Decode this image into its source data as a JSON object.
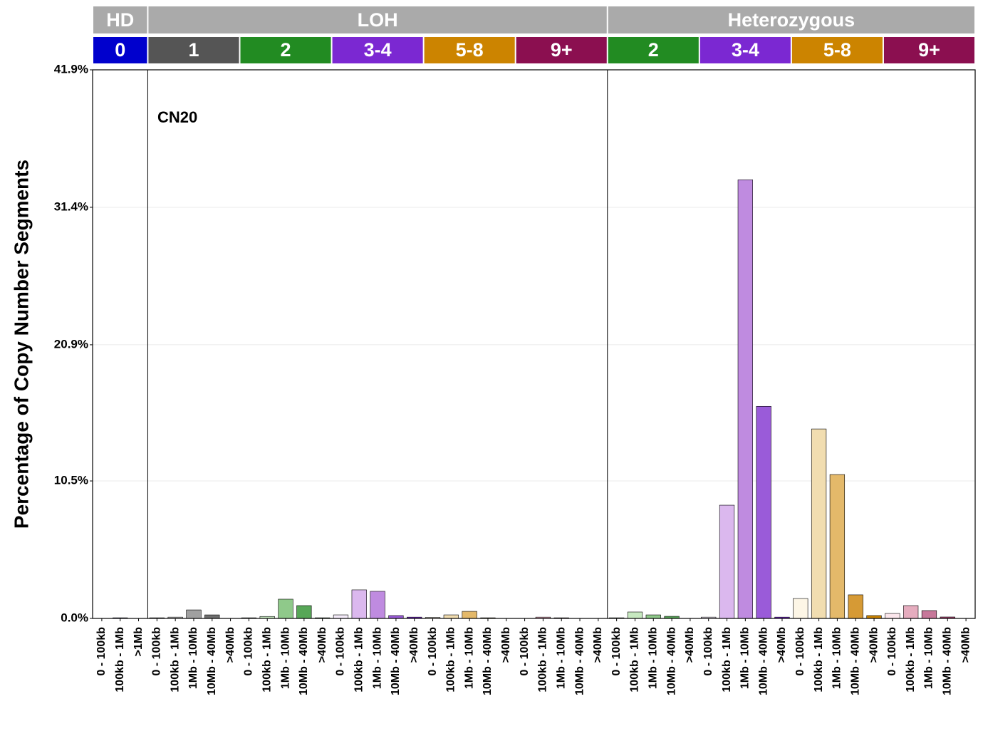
{
  "chart_data": {
    "type": "bar",
    "annotation": "CN20",
    "y_label": "Percentage of Copy Number Segments",
    "ylim": [
      0,
      41.9
    ],
    "yticks": [
      {
        "value": 0,
        "label": "0.0%"
      },
      {
        "value": 10.5,
        "label": "10.5%"
      },
      {
        "value": 20.9,
        "label": "20.9%"
      },
      {
        "value": 31.4,
        "label": "31.4%"
      },
      {
        "value": 41.9,
        "label": "41.9%"
      }
    ],
    "grid": true,
    "panels": [
      {
        "name": "HD",
        "color": "#aaaaaa",
        "groups": [
          {
            "name": "0",
            "color": "#0000cd",
            "categories": [
              "0 - 100kb",
              "100kb - 1Mb",
              ">1Mb"
            ],
            "values": [
              0,
              0.05,
              0
            ],
            "colors": [
              "#ccccff",
              "#6666ee",
              "#0000cd"
            ]
          }
        ]
      },
      {
        "name": "LOH",
        "color": "#aaaaaa",
        "groups": [
          {
            "name": "1",
            "color": "#555555",
            "categories": [
              "0 - 100kb",
              "100kb - 1Mb",
              "1Mb - 10Mb",
              "10Mb - 40Mb",
              ">40Mb"
            ],
            "values": [
              0.05,
              0.1,
              0.65,
              0.27,
              0
            ],
            "colors": [
              "#f0f0f0",
              "#d0d0d0",
              "#a0a0a0",
              "#707070",
              "#505050"
            ]
          },
          {
            "name": "2",
            "color": "#228b22",
            "categories": [
              "0 - 100kb",
              "100kb - 1Mb",
              "1Mb - 10Mb",
              "10Mb - 40Mb",
              ">40Mb"
            ],
            "values": [
              0.05,
              0.15,
              1.47,
              0.98,
              0.05
            ],
            "colors": [
              "#e5f5e0",
              "#c7e9c0",
              "#8fc98a",
              "#57a757",
              "#228b22"
            ]
          },
          {
            "name": "3-4",
            "color": "#7b28d2",
            "categories": [
              "0 - 100kb",
              "100kb - 1Mb",
              "1Mb - 10Mb",
              "10Mb - 40Mb",
              ">40Mb"
            ],
            "values": [
              0.27,
              2.18,
              2.07,
              0.22,
              0.1
            ],
            "colors": [
              "#f5ecfa",
              "#dbb8ee",
              "#bf8be0",
              "#9a5bd9",
              "#7b28d2"
            ]
          },
          {
            "name": "5-8",
            "color": "#cc8400",
            "categories": [
              "0 - 100kb",
              "100kb - 1Mb",
              "1Mb - 10Mb",
              "10Mb - 40Mb",
              ">40Mb"
            ],
            "values": [
              0.08,
              0.27,
              0.54,
              0.05,
              0
            ],
            "colors": [
              "#fdf6e6",
              "#f1ddb0",
              "#e4b96a",
              "#d69a35",
              "#cc8400"
            ]
          },
          {
            "name": "9+",
            "color": "#8b0f50",
            "categories": [
              "0 - 100kb",
              "100kb - 1Mb",
              "1Mb - 10Mb",
              "10Mb - 40Mb",
              ">40Mb"
            ],
            "values": [
              0,
              0.1,
              0.05,
              0,
              0
            ],
            "colors": [
              "#fbe6ec",
              "#e5acbe",
              "#c7789a",
              "#a84370",
              "#8b0f50"
            ]
          }
        ]
      },
      {
        "name": "Heterozygous",
        "color": "#aaaaaa",
        "groups": [
          {
            "name": "2",
            "color": "#228b22",
            "categories": [
              "0 - 100kb",
              "100kb - 1Mb",
              "1Mb - 10Mb",
              "10Mb - 40Mb",
              ">40Mb"
            ],
            "values": [
              0.05,
              0.49,
              0.27,
              0.16,
              0
            ],
            "colors": [
              "#e5f5e0",
              "#c7e9c0",
              "#8fc98a",
              "#57a757",
              "#228b22"
            ]
          },
          {
            "name": "3-4",
            "color": "#7b28d2",
            "categories": [
              "0 - 100kb",
              "100kb - 1Mb",
              "1Mb - 10Mb",
              "10Mb - 40Mb",
              ">40Mb"
            ],
            "values": [
              0.1,
              8.65,
              33.5,
              16.2,
              0.1
            ],
            "colors": [
              "#f5ecfa",
              "#dbb8ee",
              "#bf8be0",
              "#9a5bd9",
              "#7b28d2"
            ]
          },
          {
            "name": "5-8",
            "color": "#cc8400",
            "categories": [
              "0 - 100kb",
              "100kb - 1Mb",
              "1Mb - 10Mb",
              "10Mb - 40Mb",
              ">40Mb"
            ],
            "values": [
              1.52,
              14.47,
              10.99,
              1.8,
              0.22
            ],
            "colors": [
              "#fdf6e6",
              "#f1ddb0",
              "#e4b96a",
              "#d69a35",
              "#cc8400"
            ]
          },
          {
            "name": "9+",
            "color": "#8b0f50",
            "categories": [
              "0 - 100kb",
              "100kb - 1Mb",
              "1Mb - 10Mb",
              "10Mb - 40Mb",
              ">40Mb"
            ],
            "values": [
              0.38,
              0.98,
              0.6,
              0.11,
              0
            ],
            "colors": [
              "#fbe6ec",
              "#e5acbe",
              "#c7789a",
              "#a84370",
              "#8b0f50"
            ]
          }
        ]
      }
    ]
  }
}
